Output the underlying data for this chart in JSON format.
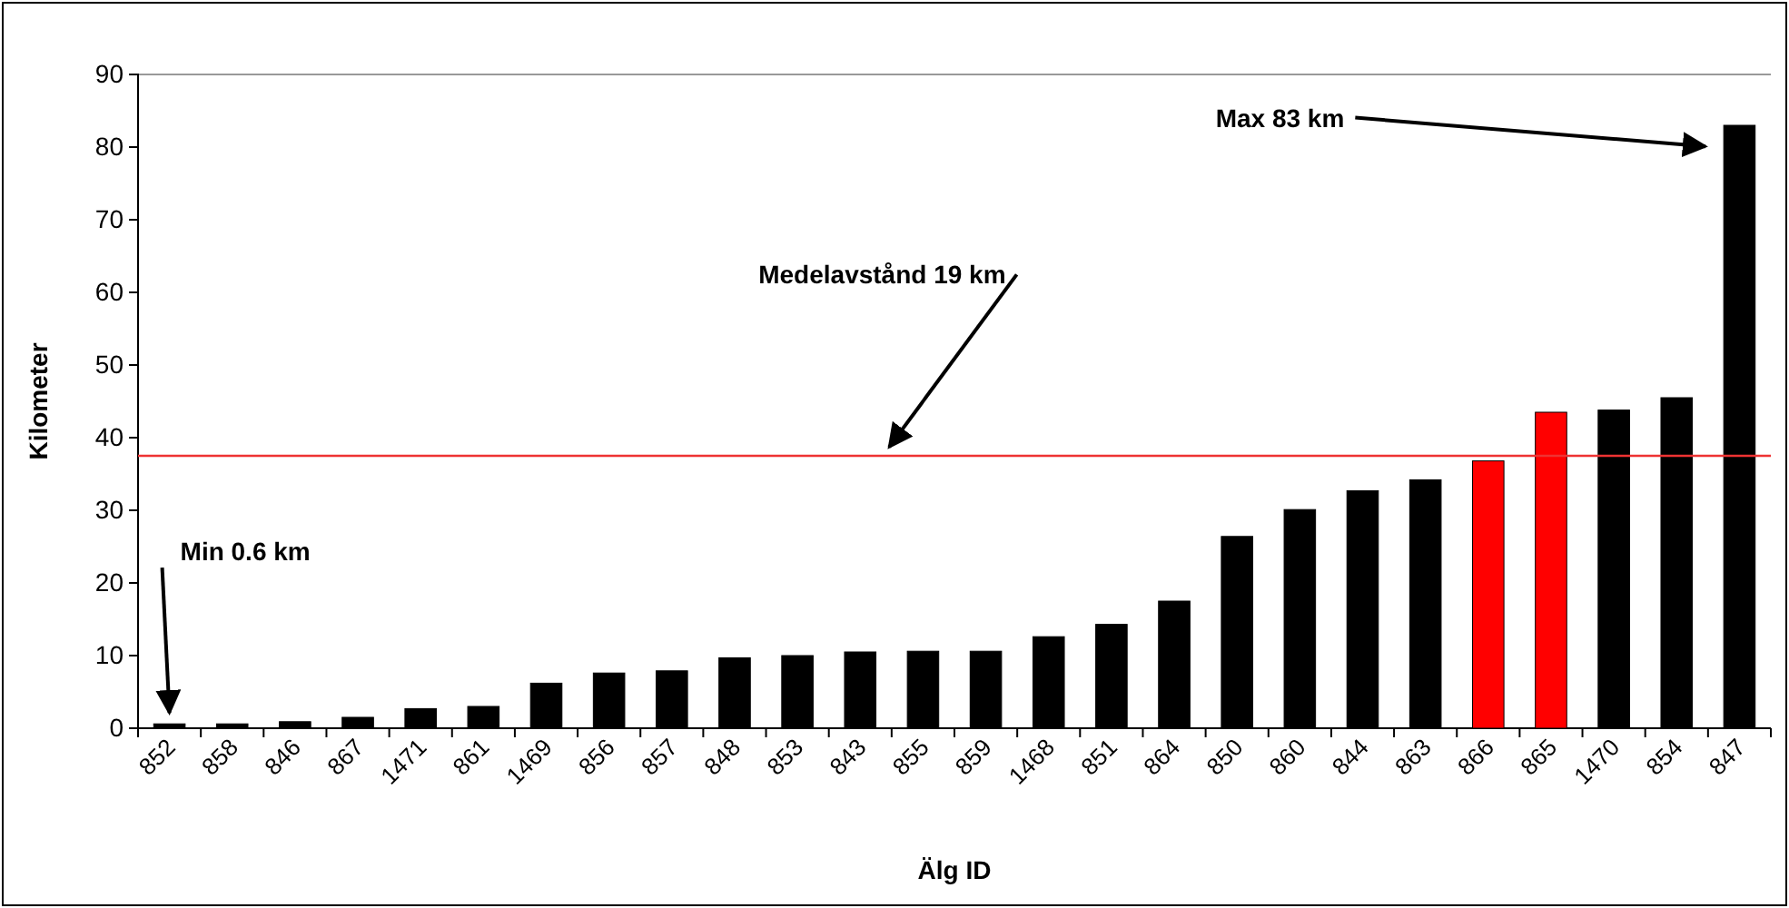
{
  "chart_data": {
    "type": "bar",
    "xlabel": "Älg ID",
    "ylabel": "Kilometer",
    "categories": [
      "852",
      "858",
      "846",
      "867",
      "1471",
      "861",
      "1469",
      "856",
      "857",
      "848",
      "853",
      "843",
      "855",
      "859",
      "1468",
      "851",
      "864",
      "850",
      "860",
      "844",
      "863",
      "866",
      "865",
      "1470",
      "854",
      "847"
    ],
    "values": [
      0.6,
      0.6,
      0.9,
      1.5,
      2.7,
      3.0,
      6.2,
      7.6,
      7.9,
      9.7,
      10.0,
      10.5,
      10.6,
      10.6,
      12.6,
      14.3,
      17.5,
      26.4,
      30.1,
      32.7,
      34.2,
      36.8,
      43.5,
      43.8,
      45.5,
      83
    ],
    "colors": [
      "#000000",
      "#000000",
      "#000000",
      "#000000",
      "#000000",
      "#000000",
      "#000000",
      "#000000",
      "#000000",
      "#000000",
      "#000000",
      "#000000",
      "#000000",
      "#000000",
      "#000000",
      "#000000",
      "#000000",
      "#000000",
      "#000000",
      "#000000",
      "#000000",
      "#ff0000",
      "#ff0000",
      "#000000",
      "#000000",
      "#000000"
    ],
    "ylim": [
      0,
      90
    ],
    "yticks": [
      0,
      10,
      20,
      30,
      40,
      50,
      60,
      70,
      80,
      90
    ],
    "grid": false,
    "ref_lines": [
      {
        "axis": "y",
        "value": 37.5,
        "color": "#ee3333"
      }
    ],
    "annotations": [
      {
        "text": "Min 0.6 km",
        "x": "852",
        "y": 0.6
      },
      "Medelavstånd 19 km",
      "Max 83 km"
    ]
  }
}
